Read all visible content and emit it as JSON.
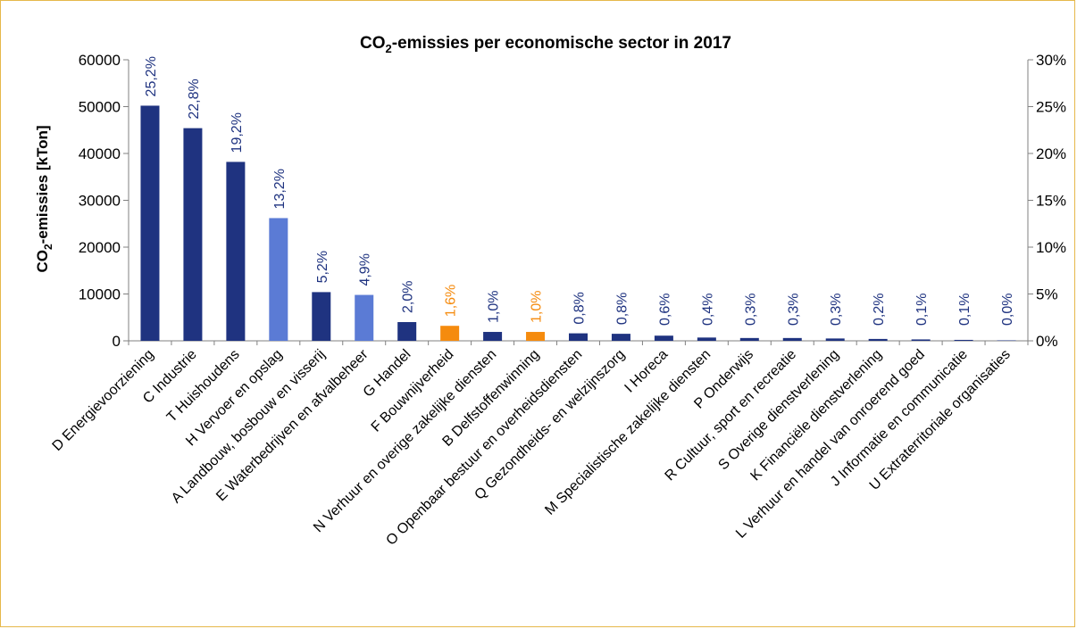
{
  "chart_data": {
    "type": "bar",
    "title_main": "CO",
    "title_sub": "2",
    "title_rest": "-emissies per economische sector in 2017",
    "ylabel_main": "CO",
    "ylabel_sub": "2",
    "ylabel_rest": "-emissies [kTon]",
    "ylim": [
      0,
      60000
    ],
    "yticks": [
      "0",
      "10000",
      "20000",
      "30000",
      "40000",
      "50000",
      "60000"
    ],
    "y2lim": [
      0,
      30
    ],
    "y2ticks": [
      "0%",
      "5%",
      "10%",
      "15%",
      "20%",
      "25%",
      "30%"
    ],
    "grid": false,
    "categories": [
      "D Energievoorziening",
      "C Industrie",
      "T Huishoudens",
      "H Vervoer en opslag",
      "A Landbouw, bosbouw en visserij",
      "E Waterbedrijven en afvalbeheer",
      "G Handel",
      "F Bouwnijverheid",
      "N Verhuur en overige zakelijke diensten",
      "B Delfstoffenwinning",
      "O Openbaar bestuur en overheidsdiensten",
      "Q Gezondheids- en welzijnszorg",
      "I Horeca",
      "M Specialistische zakelijke diensten",
      "P Onderwijs",
      "R Cultuur, sport en recreatie",
      "S Overige dienstverlening",
      "K Financiële dienstverlening",
      "L Verhuur en handel van onroerend goed",
      "J Informatie en communicatie",
      "U Extraterritoriale organisaties"
    ],
    "values": [
      50200,
      45400,
      38200,
      26200,
      10400,
      9800,
      4000,
      3200,
      1900,
      1900,
      1600,
      1500,
      1100,
      700,
      600,
      600,
      500,
      400,
      300,
      200,
      20
    ],
    "labels": [
      "25,2%",
      "22,8%",
      "19,2%",
      "13,2%",
      "5,2%",
      "4,9%",
      "2,0%",
      "1,6%",
      "1,0%",
      "1,0%",
      "0,8%",
      "0,8%",
      "0,6%",
      "0,4%",
      "0,3%",
      "0,3%",
      "0,3%",
      "0,2%",
      "0,1%",
      "0,1%",
      "0,0%"
    ],
    "bar_colors": [
      "#1f3380",
      "#1f3380",
      "#1f3380",
      "#5b7bd5",
      "#1f3380",
      "#5b7bd5",
      "#1f3380",
      "#f58b0e",
      "#1f3380",
      "#f58b0e",
      "#1f3380",
      "#1f3380",
      "#1f3380",
      "#1f3380",
      "#1f3380",
      "#1f3380",
      "#1f3380",
      "#1f3380",
      "#1f3380",
      "#1f3380",
      "#1f3380"
    ],
    "label_colors": [
      "#1f3380",
      "#1f3380",
      "#1f3380",
      "#1f3380",
      "#1f3380",
      "#1f3380",
      "#1f3380",
      "#f58b0e",
      "#1f3380",
      "#f58b0e",
      "#1f3380",
      "#1f3380",
      "#1f3380",
      "#1f3380",
      "#1f3380",
      "#1f3380",
      "#1f3380",
      "#1f3380",
      "#1f3380",
      "#1f3380",
      "#1f3380"
    ]
  },
  "colors": {
    "navy": "#1f3380",
    "light_blue": "#5b7bd5",
    "orange": "#f58b0e",
    "frame": "#e6b84a",
    "axis": "#808080"
  }
}
